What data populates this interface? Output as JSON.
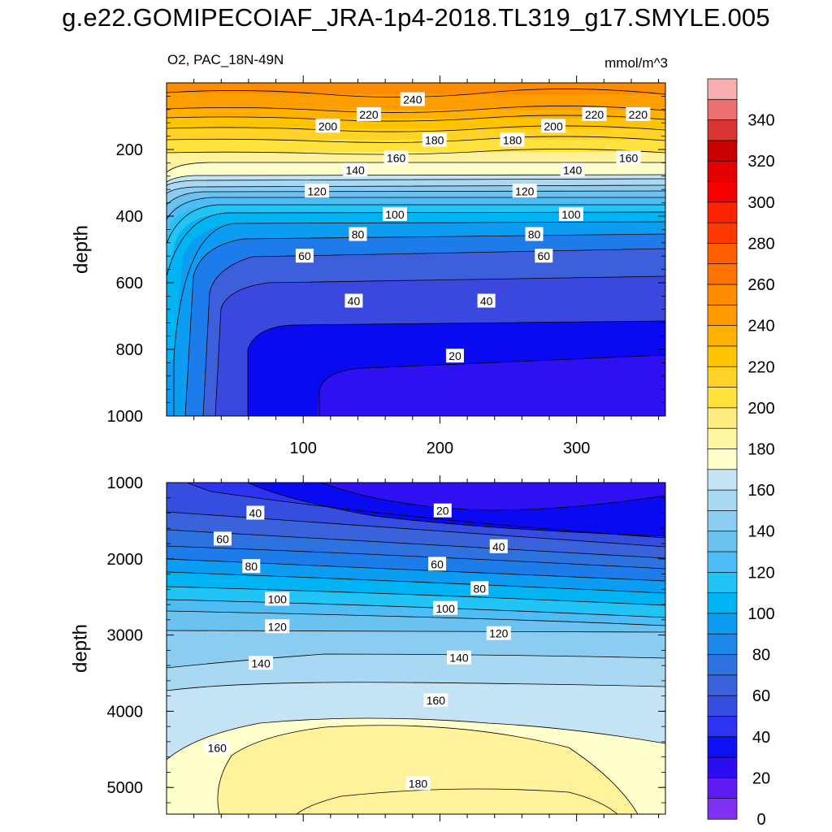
{
  "title": "g.e22.GOMIPECOIAF_JRA-1p4-2018.TL319_g17.SMYLE.005",
  "subtitle_left": "O2, PAC_18N-49N",
  "subtitle_right": "mmol/m^3",
  "chart_data": [
    {
      "type": "contour",
      "panel": "top",
      "ylabel": "depth",
      "x_range": [
        0,
        365
      ],
      "x_ticks": [
        "100",
        "200",
        "300"
      ],
      "y_range": [
        0,
        1000
      ],
      "y_inverted": true,
      "y_ticks": [
        "200",
        "400",
        "600",
        "800",
        "1000"
      ],
      "contour_labels": [
        {
          "text": "240",
          "x": 180,
          "y": 50
        },
        {
          "text": "220",
          "x": 148,
          "y": 95
        },
        {
          "text": "220",
          "x": 313,
          "y": 95
        },
        {
          "text": "220",
          "x": 345,
          "y": 95
        },
        {
          "text": "200",
          "x": 118,
          "y": 130
        },
        {
          "text": "200",
          "x": 283,
          "y": 130
        },
        {
          "text": "180",
          "x": 196,
          "y": 172
        },
        {
          "text": "180",
          "x": 253,
          "y": 172
        },
        {
          "text": "160",
          "x": 168,
          "y": 225
        },
        {
          "text": "160",
          "x": 338,
          "y": 225
        },
        {
          "text": "140",
          "x": 138,
          "y": 262
        },
        {
          "text": "140",
          "x": 297,
          "y": 262
        },
        {
          "text": "120",
          "x": 110,
          "y": 325
        },
        {
          "text": "120",
          "x": 262,
          "y": 325
        },
        {
          "text": "100",
          "x": 167,
          "y": 395
        },
        {
          "text": "100",
          "x": 296,
          "y": 395
        },
        {
          "text": "80",
          "x": 140,
          "y": 455
        },
        {
          "text": "80",
          "x": 269,
          "y": 455
        },
        {
          "text": "60",
          "x": 101,
          "y": 520
        },
        {
          "text": "60",
          "x": 276,
          "y": 520
        },
        {
          "text": "40",
          "x": 137,
          "y": 655
        },
        {
          "text": "40",
          "x": 234,
          "y": 655
        },
        {
          "text": "20",
          "x": 211,
          "y": 820
        }
      ]
    },
    {
      "type": "contour",
      "panel": "bottom",
      "ylabel": "depth",
      "x_range": [
        0,
        365
      ],
      "y_range": [
        1000,
        5350
      ],
      "y_inverted": true,
      "y_ticks": [
        "1000",
        "2000",
        "3000",
        "4000",
        "5000"
      ],
      "contour_labels": [
        {
          "text": "40",
          "x": 65,
          "y": 1400
        },
        {
          "text": "20",
          "x": 202,
          "y": 1370
        },
        {
          "text": "60",
          "x": 41,
          "y": 1740
        },
        {
          "text": "40",
          "x": 243,
          "y": 1840
        },
        {
          "text": "80",
          "x": 62,
          "y": 2100
        },
        {
          "text": "60",
          "x": 198,
          "y": 2070
        },
        {
          "text": "80",
          "x": 229,
          "y": 2390
        },
        {
          "text": "100",
          "x": 81,
          "y": 2530
        },
        {
          "text": "100",
          "x": 204,
          "y": 2650
        },
        {
          "text": "120",
          "x": 81,
          "y": 2890
        },
        {
          "text": "120",
          "x": 243,
          "y": 2980
        },
        {
          "text": "140",
          "x": 69,
          "y": 3370
        },
        {
          "text": "140",
          "x": 214,
          "y": 3300
        },
        {
          "text": "160",
          "x": 197,
          "y": 3860
        },
        {
          "text": "160",
          "x": 37,
          "y": 4480
        },
        {
          "text": "180",
          "x": 184,
          "y": 4950
        }
      ]
    }
  ],
  "colorbar": {
    "labels": [
      "340",
      "320",
      "300",
      "280",
      "260",
      "240",
      "220",
      "200",
      "180",
      "160",
      "140",
      "120",
      "100",
      "80",
      "60",
      "40",
      "20",
      "0"
    ],
    "colors": [
      "#F7AFAF",
      "#EC7070",
      "#DA3535",
      "#C80000",
      "#E20000",
      "#F70000",
      "#FF2400",
      "#FF3A00",
      "#FE5E00",
      "#FF7300",
      "#FF8C00",
      "#FF9B00",
      "#FFB000",
      "#FFC400",
      "#FFD326",
      "#FFE23C",
      "#FFEE7F",
      "#FFF6A4",
      "#FEFFCB",
      "#C4E3F4",
      "#A8D8F2",
      "#8CCCF0",
      "#6BC2EF",
      "#4FBDF5",
      "#22C4F6",
      "#00B3F2",
      "#0C9CF2",
      "#1E87EA",
      "#2E72DF",
      "#3A62DA",
      "#354EDF",
      "#2C34F2",
      "#0C10F2",
      "#2C0CF2",
      "#5E1CF2",
      "#8030F0"
    ]
  }
}
